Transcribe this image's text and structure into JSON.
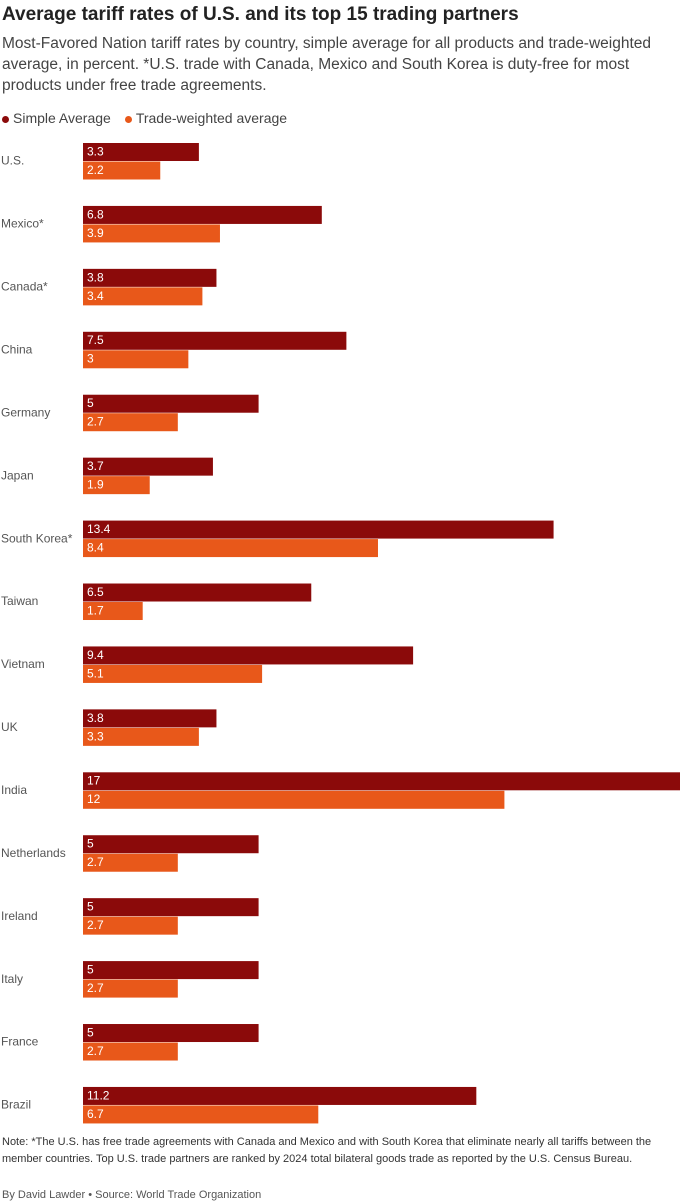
{
  "chart_data": {
    "type": "bar",
    "orientation": "horizontal",
    "title": "Average tariff rates of U.S. and its top 15 trading partners",
    "subtitle": "Most-Favored Nation tariff rates by country, simple average for all products and trade-weighted average, in percent. *U.S. trade with Canada, Mexico and South Korea is duty-free for most products under free trade agreements.",
    "categories": [
      "U.S.",
      "Mexico*",
      "Canada*",
      "China",
      "Germany",
      "Japan",
      "South Korea*",
      "Taiwan",
      "Vietnam",
      "UK",
      "India",
      "Netherlands",
      "Ireland",
      "Italy",
      "France",
      "Brazil"
    ],
    "series": [
      {
        "name": "Simple Average",
        "color": "#8b0a0a",
        "values": [
          3.3,
          6.8,
          3.8,
          7.5,
          5,
          3.7,
          13.4,
          6.5,
          9.4,
          3.8,
          17,
          5,
          5,
          5,
          5,
          11.2
        ]
      },
      {
        "name": "Trade-weighted average",
        "color": "#e8581a",
        "values": [
          2.2,
          3.9,
          3.4,
          3,
          2.7,
          1.9,
          8.4,
          1.7,
          5.1,
          3.3,
          12,
          2.7,
          2.7,
          2.7,
          2.7,
          6.7
        ]
      }
    ],
    "note": "Note: *The U.S. has free trade agreements with Canada and Mexico and with South Korea that eliminate nearly all tariffs between the member countries. Top U.S. trade partners are ranked by 2024 total bilateral goods trade as reported by the U.S. Census Bureau.",
    "byline": "By David Lawder • Source: World Trade Organization"
  }
}
